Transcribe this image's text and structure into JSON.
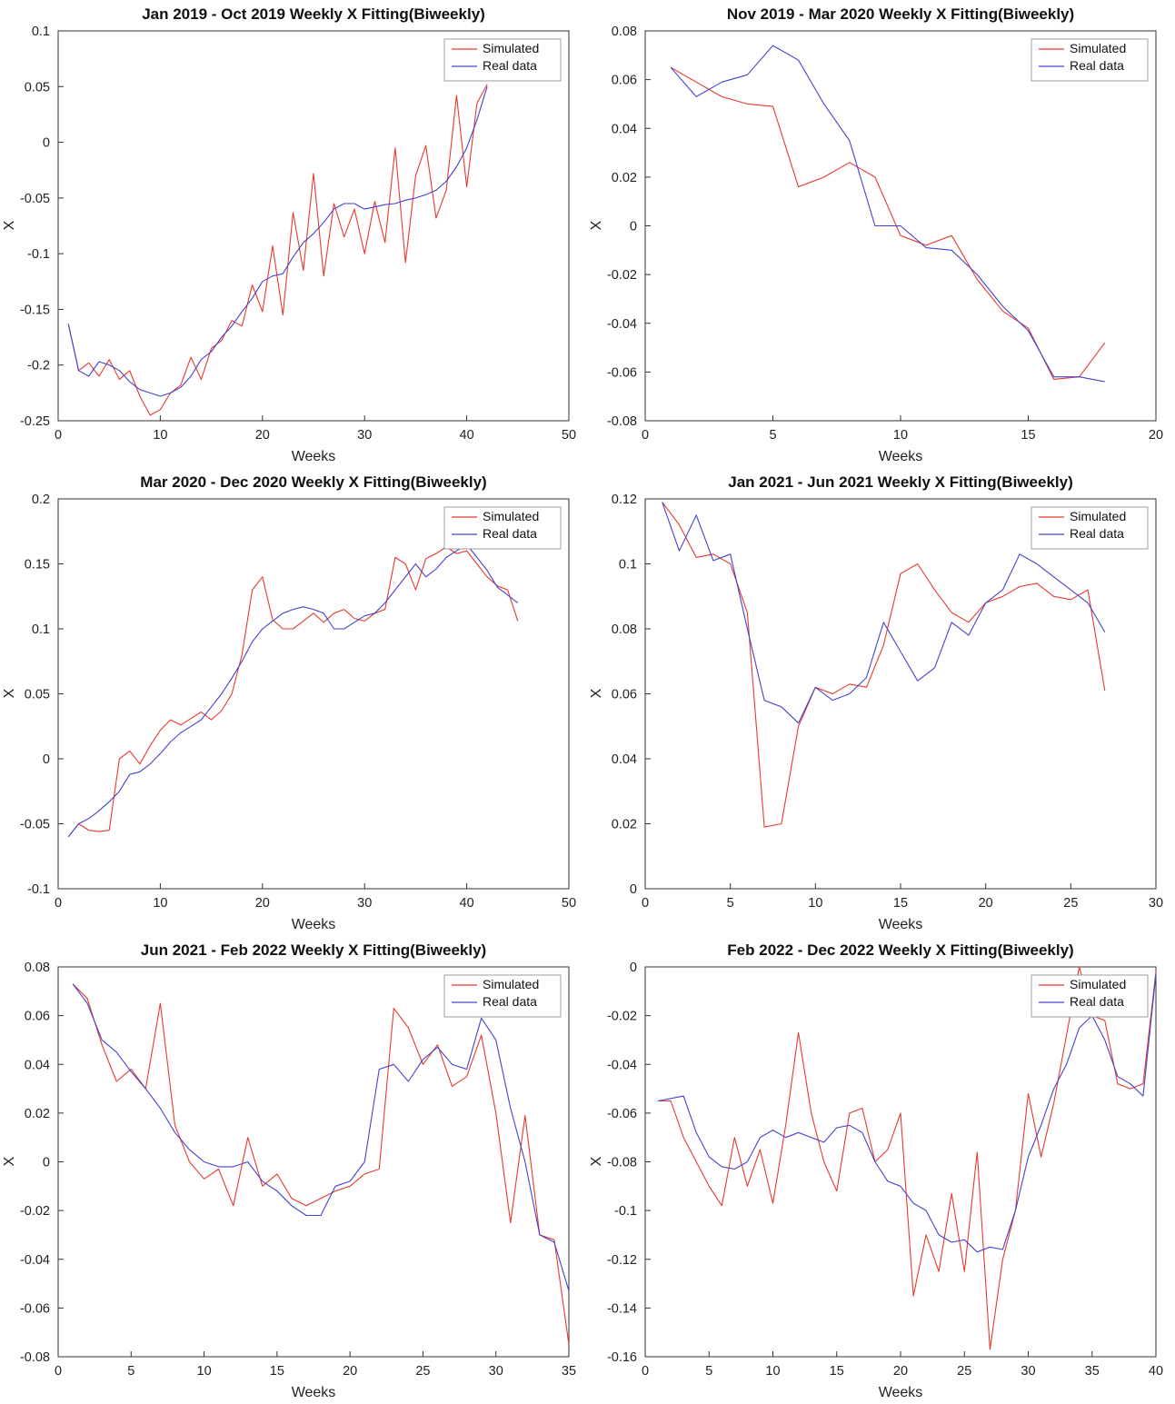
{
  "page": {
    "background": "#ffffff"
  },
  "colors": {
    "simulated": "#e8392e",
    "real": "#4343cf"
  },
  "legend": {
    "position": "top-right",
    "entries": [
      {
        "label": "Simulated",
        "color_key": "simulated"
      },
      {
        "label": "Real data",
        "color_key": "real"
      }
    ]
  },
  "chart_data": [
    {
      "type": "line",
      "title": "Jan 2019 - Oct 2019 Weekly X Fitting(Biweekly)",
      "xlabel": "Weeks",
      "ylabel": "X",
      "xlim": [
        0,
        50
      ],
      "ylim": [
        -0.25,
        0.1
      ],
      "xticks": [
        0,
        10,
        20,
        30,
        40,
        50
      ],
      "yticks": [
        -0.25,
        -0.2,
        -0.15,
        -0.1,
        -0.05,
        0,
        0.05,
        0.1
      ],
      "x_start": 1,
      "x_step": 1,
      "grid": false,
      "legend_position": "top-right",
      "series": [
        {
          "name": "Simulated",
          "color_key": "simulated",
          "values": [
            -0.163,
            -0.205,
            -0.198,
            -0.21,
            -0.195,
            -0.213,
            -0.205,
            -0.228,
            -0.245,
            -0.24,
            -0.225,
            -0.218,
            -0.193,
            -0.213,
            -0.185,
            -0.178,
            -0.16,
            -0.165,
            -0.128,
            -0.152,
            -0.093,
            -0.155,
            -0.063,
            -0.115,
            -0.028,
            -0.12,
            -0.055,
            -0.085,
            -0.06,
            -0.1,
            -0.053,
            -0.09,
            -0.005,
            -0.108,
            -0.03,
            -0.003,
            -0.068,
            -0.043,
            0.042,
            -0.04,
            0.035,
            0.052
          ]
        },
        {
          "name": "Real data",
          "color_key": "real",
          "values": [
            -0.163,
            -0.205,
            -0.21,
            -0.197,
            -0.2,
            -0.205,
            -0.215,
            -0.222,
            -0.225,
            -0.228,
            -0.225,
            -0.22,
            -0.21,
            -0.195,
            -0.188,
            -0.175,
            -0.165,
            -0.152,
            -0.14,
            -0.125,
            -0.12,
            -0.118,
            -0.103,
            -0.09,
            -0.082,
            -0.072,
            -0.06,
            -0.055,
            -0.055,
            -0.06,
            -0.058,
            -0.056,
            -0.055,
            -0.052,
            -0.05,
            -0.047,
            -0.043,
            -0.035,
            -0.022,
            -0.005,
            0.02,
            0.05
          ]
        }
      ]
    },
    {
      "type": "line",
      "title": "Nov 2019 - Mar 2020 Weekly X Fitting(Biweekly)",
      "xlabel": "Weeks",
      "ylabel": "X",
      "xlim": [
        0,
        20
      ],
      "ylim": [
        -0.08,
        0.08
      ],
      "xticks": [
        0,
        5,
        10,
        15,
        20
      ],
      "yticks": [
        -0.08,
        -0.06,
        -0.04,
        -0.02,
        0,
        0.02,
        0.04,
        0.06,
        0.08
      ],
      "x_start": 1,
      "x_step": 1,
      "grid": false,
      "legend_position": "top-right",
      "series": [
        {
          "name": "Simulated",
          "color_key": "simulated",
          "values": [
            0.065,
            0.059,
            0.053,
            0.05,
            0.049,
            0.016,
            0.02,
            0.026,
            0.02,
            -0.004,
            -0.008,
            -0.004,
            -0.022,
            -0.035,
            -0.042,
            -0.063,
            -0.062,
            -0.048
          ]
        },
        {
          "name": "Real data",
          "color_key": "real",
          "values": [
            0.065,
            0.053,
            0.059,
            0.062,
            0.074,
            0.068,
            0.05,
            0.035,
            0,
            0,
            -0.009,
            -0.01,
            -0.02,
            -0.033,
            -0.043,
            -0.062,
            -0.062,
            -0.064
          ]
        }
      ]
    },
    {
      "type": "line",
      "title": "Mar 2020 - Dec 2020 Weekly X Fitting(Biweekly)",
      "xlabel": "Weeks",
      "ylabel": "X",
      "xlim": [
        0,
        50
      ],
      "ylim": [
        -0.1,
        0.2
      ],
      "xticks": [
        0,
        10,
        20,
        30,
        40,
        50
      ],
      "yticks": [
        -0.1,
        -0.05,
        0,
        0.05,
        0.1,
        0.15,
        0.2
      ],
      "x_start": 1,
      "x_step": 1,
      "grid": false,
      "legend_position": "top-right",
      "series": [
        {
          "name": "Simulated",
          "color_key": "simulated",
          "values": [
            -0.06,
            -0.05,
            -0.055,
            -0.056,
            -0.055,
            0,
            0.006,
            -0.004,
            0.01,
            0.022,
            0.03,
            0.026,
            0.031,
            0.036,
            0.03,
            0.037,
            0.05,
            0.08,
            0.13,
            0.14,
            0.107,
            0.1,
            0.1,
            0.106,
            0.112,
            0.105,
            0.112,
            0.115,
            0.108,
            0.106,
            0.112,
            0.115,
            0.155,
            0.15,
            0.13,
            0.154,
            0.158,
            0.163,
            0.158,
            0.16,
            0.15,
            0.14,
            0.133,
            0.13,
            0.106
          ]
        },
        {
          "name": "Real data",
          "color_key": "real",
          "values": [
            -0.06,
            -0.05,
            -0.046,
            -0.04,
            -0.033,
            -0.025,
            -0.012,
            -0.01,
            -0.004,
            0.004,
            0.013,
            0.02,
            0.025,
            0.03,
            0.04,
            0.05,
            0.062,
            0.075,
            0.09,
            0.1,
            0.106,
            0.112,
            0.115,
            0.117,
            0.115,
            0.112,
            0.1,
            0.1,
            0.105,
            0.11,
            0.112,
            0.12,
            0.13,
            0.14,
            0.15,
            0.14,
            0.146,
            0.155,
            0.16,
            0.165,
            0.155,
            0.145,
            0.132,
            0.126,
            0.12
          ]
        }
      ]
    },
    {
      "type": "line",
      "title": "Jan 2021 - Jun 2021 Weekly X Fitting(Biweekly)",
      "xlabel": "Weeks",
      "ylabel": "X",
      "xlim": [
        0,
        30
      ],
      "ylim": [
        0,
        0.12
      ],
      "xticks": [
        0,
        5,
        10,
        15,
        20,
        25,
        30
      ],
      "yticks": [
        0,
        0.02,
        0.04,
        0.06,
        0.08,
        0.1,
        0.12
      ],
      "x_start": 1,
      "x_step": 1,
      "grid": false,
      "legend_position": "top-right",
      "series": [
        {
          "name": "Simulated",
          "color_key": "simulated",
          "values": [
            0.119,
            0.112,
            0.102,
            0.103,
            0.1,
            0.085,
            0.019,
            0.02,
            0.05,
            0.062,
            0.06,
            0.063,
            0.062,
            0.075,
            0.097,
            0.1,
            0.092,
            0.085,
            0.082,
            0.088,
            0.09,
            0.093,
            0.094,
            0.09,
            0.089,
            0.092,
            0.061
          ]
        },
        {
          "name": "Real data",
          "color_key": "real",
          "values": [
            0.119,
            0.104,
            0.115,
            0.101,
            0.103,
            0.08,
            0.058,
            0.056,
            0.051,
            0.062,
            0.058,
            0.06,
            0.065,
            0.082,
            0.073,
            0.064,
            0.068,
            0.082,
            0.078,
            0.088,
            0.092,
            0.103,
            0.1,
            0.096,
            0.092,
            0.088,
            0.079
          ]
        }
      ]
    },
    {
      "type": "line",
      "title": "Jun 2021 - Feb 2022 Weekly X Fitting(Biweekly)",
      "xlabel": "Weeks",
      "ylabel": "X",
      "xlim": [
        0,
        35
      ],
      "ylim": [
        -0.08,
        0.08
      ],
      "xticks": [
        0,
        5,
        10,
        15,
        20,
        25,
        30,
        35
      ],
      "yticks": [
        -0.08,
        -0.06,
        -0.04,
        -0.02,
        0,
        0.02,
        0.04,
        0.06,
        0.08
      ],
      "x_start": 1,
      "x_step": 1,
      "grid": false,
      "legend_position": "top-right",
      "series": [
        {
          "name": "Simulated",
          "color_key": "simulated",
          "values": [
            0.073,
            0.067,
            0.048,
            0.033,
            0.038,
            0.03,
            0.065,
            0.015,
            0,
            -0.007,
            -0.003,
            -0.018,
            0.01,
            -0.01,
            -0.005,
            -0.015,
            -0.018,
            -0.015,
            -0.012,
            -0.01,
            -0.005,
            -0.003,
            0.063,
            0.055,
            0.04,
            0.048,
            0.031,
            0.035,
            0.052,
            0.02,
            -0.025,
            0.019,
            -0.03,
            -0.032,
            -0.075
          ]
        },
        {
          "name": "Real data",
          "color_key": "real",
          "values": [
            0.073,
            0.065,
            0.05,
            0.045,
            0.037,
            0.03,
            0.022,
            0.012,
            0.005,
            0,
            -0.002,
            -0.002,
            0,
            -0.008,
            -0.012,
            -0.018,
            -0.022,
            -0.022,
            -0.01,
            -0.008,
            0,
            0.038,
            0.04,
            0.033,
            0.042,
            0.047,
            0.04,
            0.038,
            0.059,
            0.05,
            0.022,
            0,
            -0.03,
            -0.033,
            -0.053
          ]
        }
      ]
    },
    {
      "type": "line",
      "title": "Feb 2022 - Dec 2022 Weekly X Fitting(Biweekly)",
      "xlabel": "Weeks",
      "ylabel": "X",
      "xlim": [
        0,
        40
      ],
      "ylim": [
        -0.16,
        0
      ],
      "xticks": [
        0,
        5,
        10,
        15,
        20,
        25,
        30,
        35,
        40
      ],
      "yticks": [
        -0.16,
        -0.14,
        -0.12,
        -0.1,
        -0.08,
        -0.06,
        -0.04,
        -0.02,
        0
      ],
      "x_start": 1,
      "x_step": 1,
      "grid": false,
      "legend_position": "top-right",
      "series": [
        {
          "name": "Simulated",
          "color_key": "simulated",
          "values": [
            -0.055,
            -0.055,
            -0.07,
            -0.08,
            -0.09,
            -0.098,
            -0.07,
            -0.09,
            -0.075,
            -0.097,
            -0.065,
            -0.027,
            -0.06,
            -0.08,
            -0.092,
            -0.06,
            -0.058,
            -0.08,
            -0.075,
            -0.06,
            -0.135,
            -0.11,
            -0.125,
            -0.093,
            -0.125,
            -0.076,
            -0.157,
            -0.12,
            -0.1,
            -0.052,
            -0.078,
            -0.056,
            -0.028,
            0,
            -0.02,
            -0.022,
            -0.048,
            -0.05,
            -0.048,
            -0.002
          ]
        },
        {
          "name": "Real data",
          "color_key": "real",
          "values": [
            -0.055,
            -0.054,
            -0.053,
            -0.068,
            -0.078,
            -0.082,
            -0.083,
            -0.08,
            -0.07,
            -0.067,
            -0.07,
            -0.068,
            -0.07,
            -0.072,
            -0.066,
            -0.065,
            -0.068,
            -0.08,
            -0.088,
            -0.09,
            -0.097,
            -0.1,
            -0.11,
            -0.113,
            -0.112,
            -0.117,
            -0.115,
            -0.116,
            -0.1,
            -0.078,
            -0.065,
            -0.05,
            -0.04,
            -0.025,
            -0.02,
            -0.03,
            -0.045,
            -0.048,
            -0.053,
            -0.003
          ]
        }
      ]
    }
  ]
}
